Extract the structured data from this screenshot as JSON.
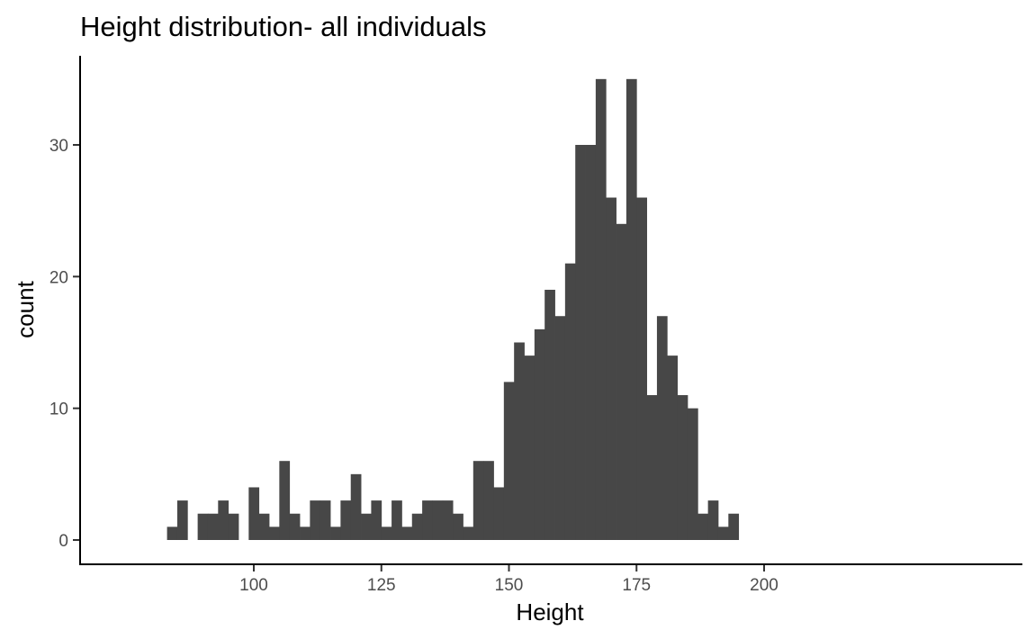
{
  "chart_data": {
    "type": "bar",
    "title": "Height distribution- all individuals",
    "xlabel": "Height",
    "ylabel": "count",
    "xlim": [
      80,
      200
    ],
    "ylim": [
      0,
      35
    ],
    "x_ticks": [
      {
        "value": 100,
        "label": "100"
      },
      {
        "value": 125,
        "label": "125"
      },
      {
        "value": 150,
        "label": "150"
      },
      {
        "value": 175,
        "label": "175"
      },
      {
        "value": 200,
        "label": "200"
      }
    ],
    "y_ticks": [
      {
        "value": 0,
        "label": "0"
      },
      {
        "value": 10,
        "label": "10"
      },
      {
        "value": 20,
        "label": "20"
      },
      {
        "value": 30,
        "label": "30"
      }
    ],
    "bin_width": 2,
    "bin_centers": [
      84,
      86,
      88,
      90,
      92,
      94,
      96,
      98,
      100,
      102,
      104,
      106,
      108,
      110,
      112,
      114,
      116,
      118,
      120,
      122,
      124,
      126,
      128,
      130,
      132,
      134,
      136,
      138,
      140,
      142,
      144,
      146,
      148,
      150,
      152,
      154,
      156,
      158,
      160,
      162,
      164,
      166,
      168,
      170,
      172,
      174,
      176,
      178,
      180,
      182,
      184,
      186,
      188,
      190,
      192,
      194
    ],
    "values": [
      1,
      3,
      0,
      2,
      2,
      3,
      2,
      0,
      4,
      2,
      1,
      6,
      2,
      1,
      3,
      3,
      1,
      3,
      5,
      2,
      3,
      1,
      3,
      1,
      2,
      3,
      3,
      3,
      2,
      1,
      6,
      6,
      4,
      12,
      15,
      14,
      16,
      19,
      17,
      21,
      30,
      30,
      35,
      26,
      24,
      35,
      26,
      11,
      17,
      14,
      11,
      10,
      2,
      3,
      1,
      2
    ],
    "bar_color": "#474747",
    "grid": false,
    "legend": "none"
  }
}
